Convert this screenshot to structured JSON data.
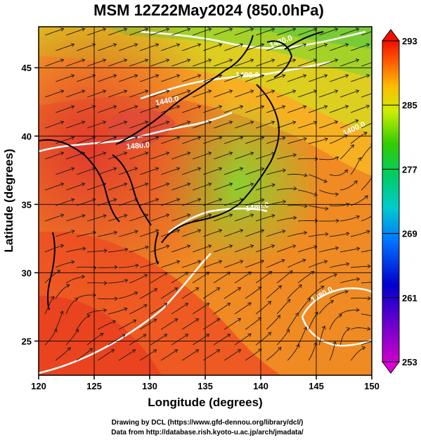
{
  "title": "MSM 12Z22May2024 (850.0hPa)",
  "map": {
    "xlabel": "Longitude (degrees)",
    "ylabel": "Latitude  (degrees)",
    "lon_range": [
      120,
      150
    ],
    "lat_range": [
      22.5,
      48
    ],
    "x_ticks": [
      "120",
      "125",
      "130",
      "135",
      "140",
      "145",
      "150"
    ],
    "y_ticks": [
      "25",
      "30",
      "35",
      "40",
      "45"
    ],
    "fill_variable": "temperature",
    "gridlines": true,
    "contours": [
      {
        "label": "1440.0"
      },
      {
        "label": "1480.0"
      },
      {
        "label": "1400.0"
      },
      {
        "label": "1480.0"
      },
      {
        "label": "1480.0"
      },
      {
        "label": "1480.0"
      },
      {
        "label": "1400.0"
      }
    ]
  },
  "colorbar": {
    "min": 253,
    "max": 293,
    "labels": [
      "293",
      "285",
      "277",
      "269",
      "261",
      "253"
    ]
  },
  "credits": {
    "line1": "Drawing by DCL (https://www.gfd-dennou.org/library/dcl/)",
    "line2": "Data from http://database.rish.kyoto-u.ac.jp/arch/jmadata/"
  }
}
